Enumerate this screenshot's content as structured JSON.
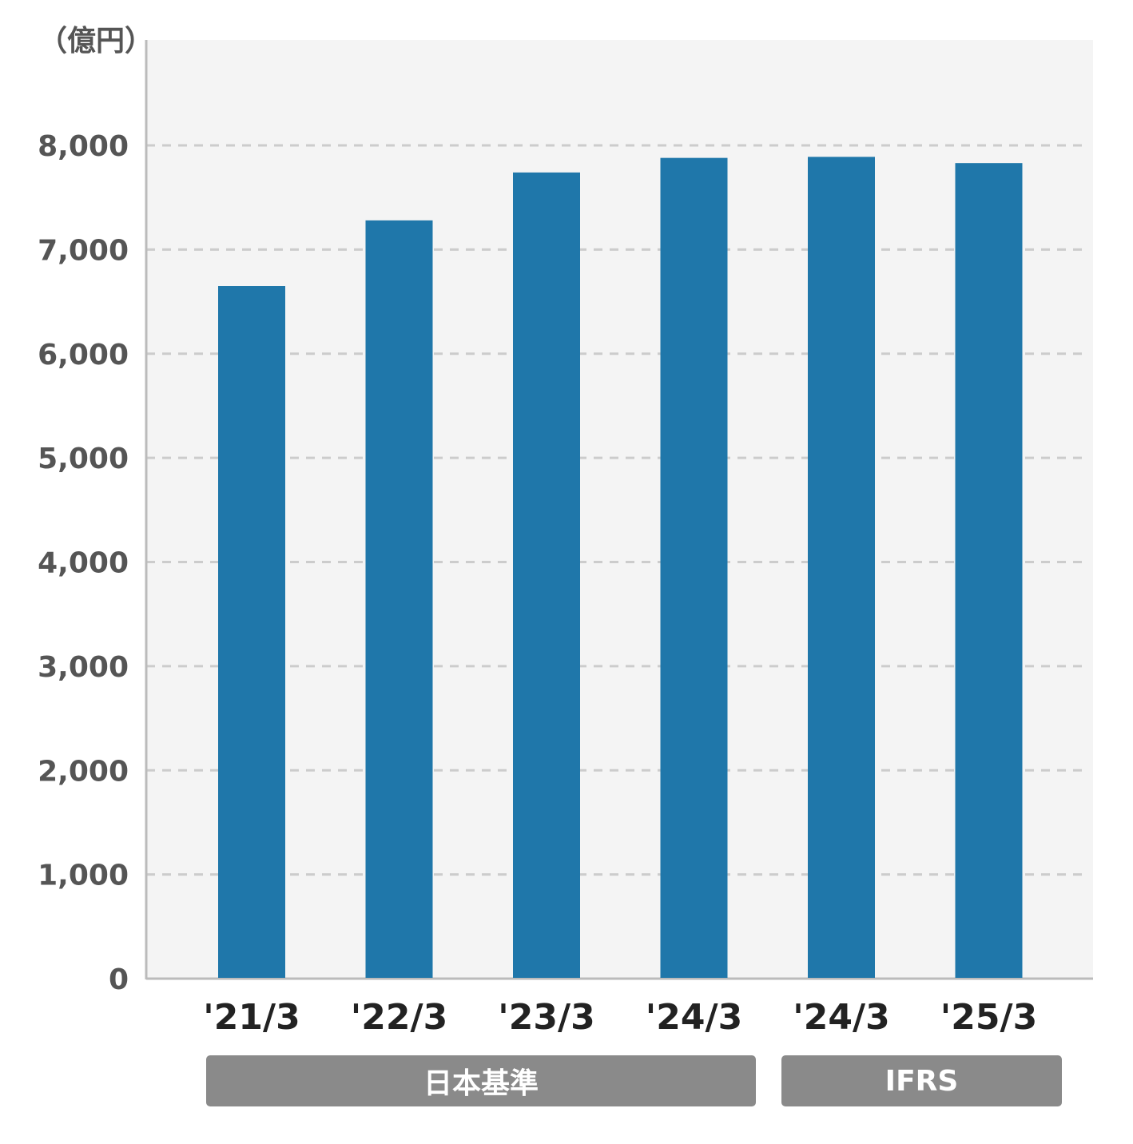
{
  "chart_data": {
    "type": "bar",
    "unit_label": "（億円）",
    "categories": [
      "'21/3",
      "'22/3",
      "'23/3",
      "'24/3",
      "'24/3",
      "'25/3"
    ],
    "values": [
      6650,
      7280,
      7740,
      7880,
      7890,
      7830
    ],
    "ylim": [
      0,
      8000
    ],
    "yticks": [
      0,
      1000,
      2000,
      3000,
      4000,
      5000,
      6000,
      7000,
      8000
    ],
    "ytick_labels": [
      "0",
      "1,000",
      "2,000",
      "3,000",
      "4,000",
      "5,000",
      "6,000",
      "7,000",
      "8,000"
    ],
    "grid": true,
    "colors": {
      "bar": "#1f77aa",
      "plot_bg": "#f4f4f4",
      "grid": "#cccccc",
      "axis": "#bbbbbb",
      "band": "#8a8a8a"
    },
    "groups": [
      {
        "label": "日本基準"
      },
      {
        "label": "IFRS"
      }
    ]
  }
}
